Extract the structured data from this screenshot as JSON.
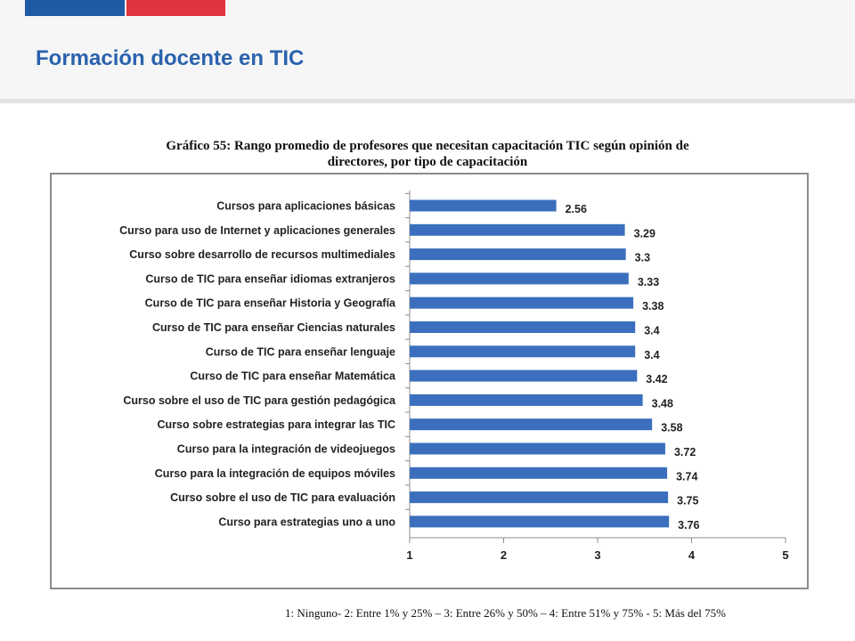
{
  "header": {
    "title": "Formación docente en TIC",
    "accent_blue": "#1f5aa5",
    "accent_red": "#e23340",
    "title_color": "#2a62ad"
  },
  "footnote": "1: Ninguno- 2: Entre 1% y 25% – 3: Entre 26% y 50% – 4: Entre 51% y 75% - 5: Más del 75%",
  "chart_data": {
    "type": "bar",
    "orientation": "horizontal",
    "title_lines": [
      "Gráfico 55: Rango promedio de profesores que necesitan capacitación TIC según opinión de",
      "directores, por tipo de capacitación"
    ],
    "categories": [
      "Cursos para aplicaciones básicas",
      "Curso para uso de Internet y aplicaciones generales",
      "Curso sobre desarrollo de recursos multimediales",
      "Curso de TIC para enseñar idiomas extranjeros",
      "Curso de TIC para enseñar Historia y Geografía",
      "Curso de TIC para enseñar Ciencias naturales",
      "Curso de TIC para enseñar lenguaje",
      "Curso de TIC para enseñar Matemática",
      "Curso sobre el uso de TIC para gestión pedagógica",
      "Curso sobre estrategias para integrar las TIC",
      "Curso para la integración  de videojuegos",
      "Curso para la integración de equipos móviles",
      "Curso sobre el uso de TIC para evaluación",
      "Curso para  estrategias uno a uno"
    ],
    "values": [
      2.56,
      3.29,
      3.3,
      3.33,
      3.38,
      3.4,
      3.4,
      3.42,
      3.48,
      3.58,
      3.72,
      3.74,
      3.75,
      3.76
    ],
    "value_labels": [
      "2.56",
      "3.29",
      "3.3",
      "3.33",
      "3.38",
      "3.4",
      "3.4",
      "3.42",
      "3.48",
      "3.58",
      "3.72",
      "3.74",
      "3.75",
      "3.76"
    ],
    "xlim": [
      1,
      5
    ],
    "xticks": [
      1,
      2,
      3,
      4,
      5
    ],
    "xtick_labels": [
      "1",
      "2",
      "3",
      "4",
      "5"
    ],
    "grid": false,
    "bar_color": "#3b6fbe"
  }
}
